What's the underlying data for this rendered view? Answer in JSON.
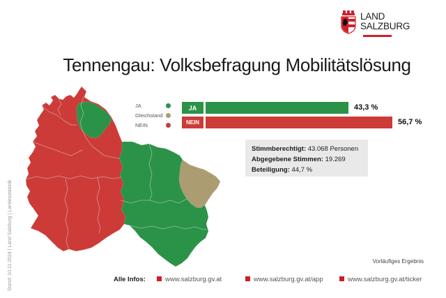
{
  "logo": {
    "line1": "LAND",
    "line2": "SALZBURG"
  },
  "title": "Tennengau: Volksbefragung Mobilitätslösung",
  "legend": {
    "items": [
      {
        "label": "JA",
        "color": "#2b9348"
      },
      {
        "label": "Gleichstand",
        "color": "#ab9c72"
      },
      {
        "label": "NEIN",
        "color": "#cc3b38"
      }
    ]
  },
  "chart_data": {
    "type": "bar",
    "orientation": "horizontal",
    "title": "Tennengau: Volksbefragung Mobilitätslösung",
    "categories": [
      "JA",
      "NEIN"
    ],
    "values": [
      43.3,
      56.7
    ],
    "value_labels": [
      "43,3 %",
      "56,7 %"
    ],
    "colors": [
      "#2b9348",
      "#cc3b38"
    ],
    "xlim": [
      0,
      56.7
    ],
    "grid": false,
    "legend_position": "left"
  },
  "stats": {
    "lines": [
      {
        "label": "Stimmberechtigt:",
        "value": " 43.068 Personen"
      },
      {
        "label": "Abgegebene Stimmen:",
        "value": " 19.269"
      },
      {
        "label": "Beteiligung:",
        "value": " 44,7 %"
      }
    ]
  },
  "footnote": "Vorläufiges Ergebnis",
  "footer": {
    "label": "Alle Infos:",
    "bullet_color": "#cf1d23",
    "links": [
      "www.salzburg.gv.at",
      "www.salzburg.gv.at/app",
      "www.salzburg.gv.at/ticker"
    ]
  },
  "sidebar_note": "Stand: 10.11.2024 | Land Salzburg | Landesstatistik",
  "map": {
    "regions": [
      {
        "id": "west-municipalities",
        "result": "NEIN"
      },
      {
        "id": "east-municipalities",
        "result": "JA"
      },
      {
        "id": "north-municipality",
        "result": "JA"
      },
      {
        "id": "east-border-municipality",
        "result": "Gleichstand"
      }
    ]
  },
  "brand": {
    "red": "#d2202a"
  }
}
